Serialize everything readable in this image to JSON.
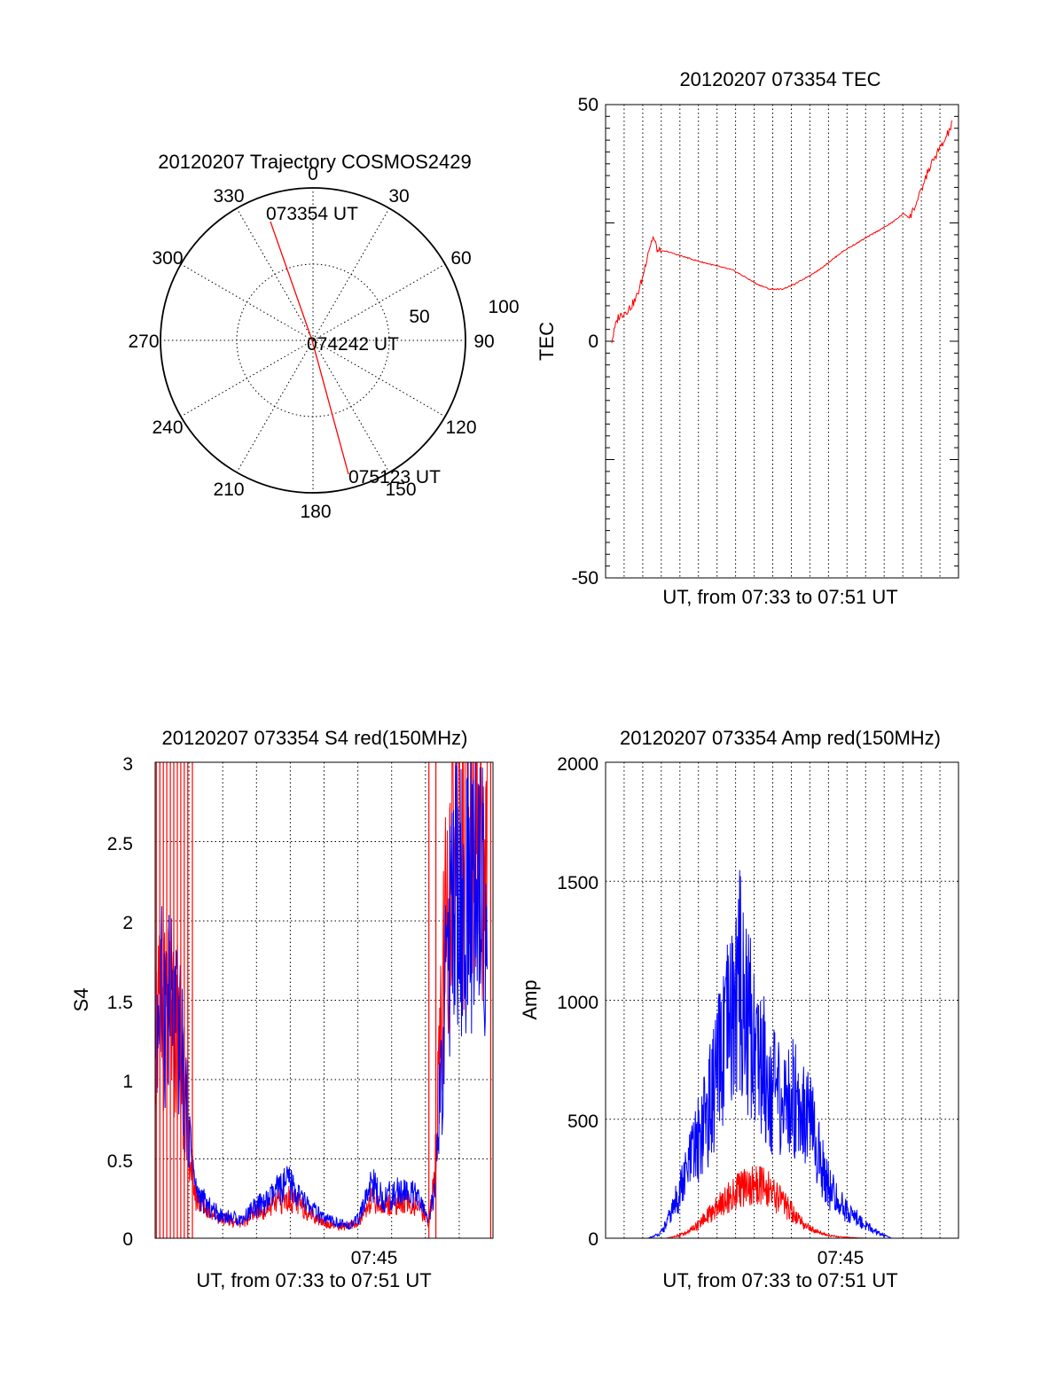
{
  "colors": {
    "red": "#ff0000",
    "blue": "#0000ff",
    "axis": "#000000",
    "grid": "#000000"
  },
  "chart_data": [
    {
      "type": "polar",
      "title": "20120207 Trajectory COSMOS2429",
      "angle_labels": [
        "0",
        "30",
        "60",
        "90",
        "120",
        "150",
        "180",
        "210",
        "240",
        "270",
        "300",
        "330"
      ],
      "radius_labels": [
        "50",
        "100"
      ],
      "grid": true,
      "series": [
        {
          "color": "red",
          "points": [
            {
              "azimuth": 337,
              "elevation_offset": 87,
              "label": "073354 UT"
            },
            {
              "azimuth": 90,
              "elevation_offset": 0,
              "label": "074242 UT"
            },
            {
              "azimuth": 161,
              "elevation_offset": 96,
              "label": "075123 UT"
            }
          ]
        }
      ]
    },
    {
      "type": "line",
      "title": "20120207 073354 TEC",
      "ylabel": "TEC",
      "xlabel": "UT, from 07:33 to 07:51 UT",
      "ylim": [
        -50,
        50
      ],
      "yticks": [
        "-50",
        "0",
        "50"
      ],
      "xlim_min": [
        7.565,
        7.855
      ],
      "grid": "vertical dotted",
      "series": [
        {
          "color": "red",
          "x": [
            7.57,
            7.575,
            7.58,
            7.585,
            7.59,
            7.595,
            7.6,
            7.604,
            7.608,
            7.615,
            7.64,
            7.67,
            7.69,
            7.7,
            7.71,
            7.72,
            7.74,
            7.76,
            7.78,
            7.8,
            7.81,
            7.815,
            7.818,
            7.822,
            7.83,
            7.838,
            7.843,
            7.85
          ],
          "y": [
            0,
            5,
            6,
            7,
            9,
            13,
            19,
            22,
            19,
            19,
            17,
            15,
            12,
            11,
            11,
            12,
            15,
            19,
            22,
            25,
            27,
            26,
            28,
            30,
            36,
            40,
            42,
            46
          ]
        }
      ]
    },
    {
      "type": "line",
      "title": "20120207 073354 S4 red(150MHz)",
      "ylabel": "S4",
      "xlabel": "UT, from 07:33 to 07:51 UT",
      "ylim": [
        0,
        3
      ],
      "yticks": [
        "0",
        "0.5",
        "1",
        "1.5",
        "2",
        "2.5",
        "3"
      ],
      "xticks": [
        "07:45"
      ],
      "grid": true,
      "series": [
        {
          "name": "blue",
          "color": "blue",
          "x": [
            7.565,
            7.575,
            7.585,
            7.59,
            7.595,
            7.6,
            7.61,
            7.62,
            7.63,
            7.64,
            7.65,
            7.66,
            7.67,
            7.68,
            7.69,
            7.7,
            7.71,
            7.72,
            7.73,
            7.74,
            7.75,
            7.76,
            7.77,
            7.78,
            7.79,
            7.8,
            7.805,
            7.81,
            7.815,
            7.82,
            7.825,
            7.83,
            7.84,
            7.85
          ],
          "y": [
            1.4,
            1.5,
            1.3,
            1.0,
            0.6,
            0.3,
            0.2,
            0.15,
            0.13,
            0.12,
            0.2,
            0.22,
            0.3,
            0.35,
            0.25,
            0.18,
            0.12,
            0.1,
            0.08,
            0.12,
            0.35,
            0.25,
            0.28,
            0.3,
            0.25,
            0.12,
            0.3,
            0.9,
            1.6,
            2.1,
            2.2,
            2.0,
            2.3,
            2.1
          ]
        },
        {
          "name": "red",
          "color": "red",
          "x": [
            7.565,
            7.575,
            7.585,
            7.59,
            7.595,
            7.6,
            7.61,
            7.62,
            7.63,
            7.64,
            7.65,
            7.66,
            7.67,
            7.68,
            7.69,
            7.7,
            7.71,
            7.72,
            7.73,
            7.74,
            7.75,
            7.76,
            7.77,
            7.78,
            7.79,
            7.8,
            7.805,
            7.81,
            7.815,
            7.82,
            7.825,
            7.83,
            7.84,
            7.85
          ],
          "y": [
            1.3,
            1.4,
            1.2,
            0.9,
            0.5,
            0.25,
            0.18,
            0.13,
            0.11,
            0.1,
            0.16,
            0.18,
            0.22,
            0.25,
            0.2,
            0.15,
            0.1,
            0.08,
            0.07,
            0.1,
            0.25,
            0.2,
            0.22,
            0.22,
            0.2,
            0.1,
            0.4,
            1.2,
            2.0,
            2.6,
            2.8,
            2.5,
            2.6,
            2.4
          ]
        }
      ]
    },
    {
      "type": "line",
      "title": "20120207 073354 Amp red(150MHz)",
      "ylabel": "Amp",
      "xlabel": "UT, from 07:33 to 07:51 UT",
      "ylim": [
        0,
        2000
      ],
      "yticks": [
        "0",
        "500",
        "1000",
        "1500",
        "2000"
      ],
      "xticks": [
        "07:45"
      ],
      "grid": true,
      "series": [
        {
          "name": "blue",
          "color": "blue",
          "x": [
            7.565,
            7.6,
            7.61,
            7.615,
            7.62,
            7.63,
            7.64,
            7.65,
            7.66,
            7.67,
            7.675,
            7.68,
            7.69,
            7.7,
            7.71,
            7.72,
            7.73,
            7.74,
            7.75,
            7.76,
            7.77,
            7.78,
            7.79,
            7.8,
            7.85
          ],
          "y": [
            0,
            0,
            20,
            60,
            120,
            250,
            400,
            550,
            750,
            950,
            1100,
            950,
            800,
            650,
            550,
            600,
            550,
            350,
            200,
            130,
            90,
            50,
            20,
            0,
            0
          ]
        },
        {
          "name": "red",
          "color": "red",
          "x": [
            7.565,
            7.615,
            7.62,
            7.63,
            7.64,
            7.65,
            7.66,
            7.67,
            7.68,
            7.69,
            7.7,
            7.71,
            7.72,
            7.73,
            7.74,
            7.75,
            7.76,
            7.77,
            7.78,
            7.85
          ],
          "y": [
            0,
            0,
            5,
            20,
            50,
            100,
            150,
            190,
            220,
            230,
            200,
            150,
            100,
            50,
            25,
            10,
            5,
            2,
            0,
            0
          ]
        }
      ]
    }
  ]
}
